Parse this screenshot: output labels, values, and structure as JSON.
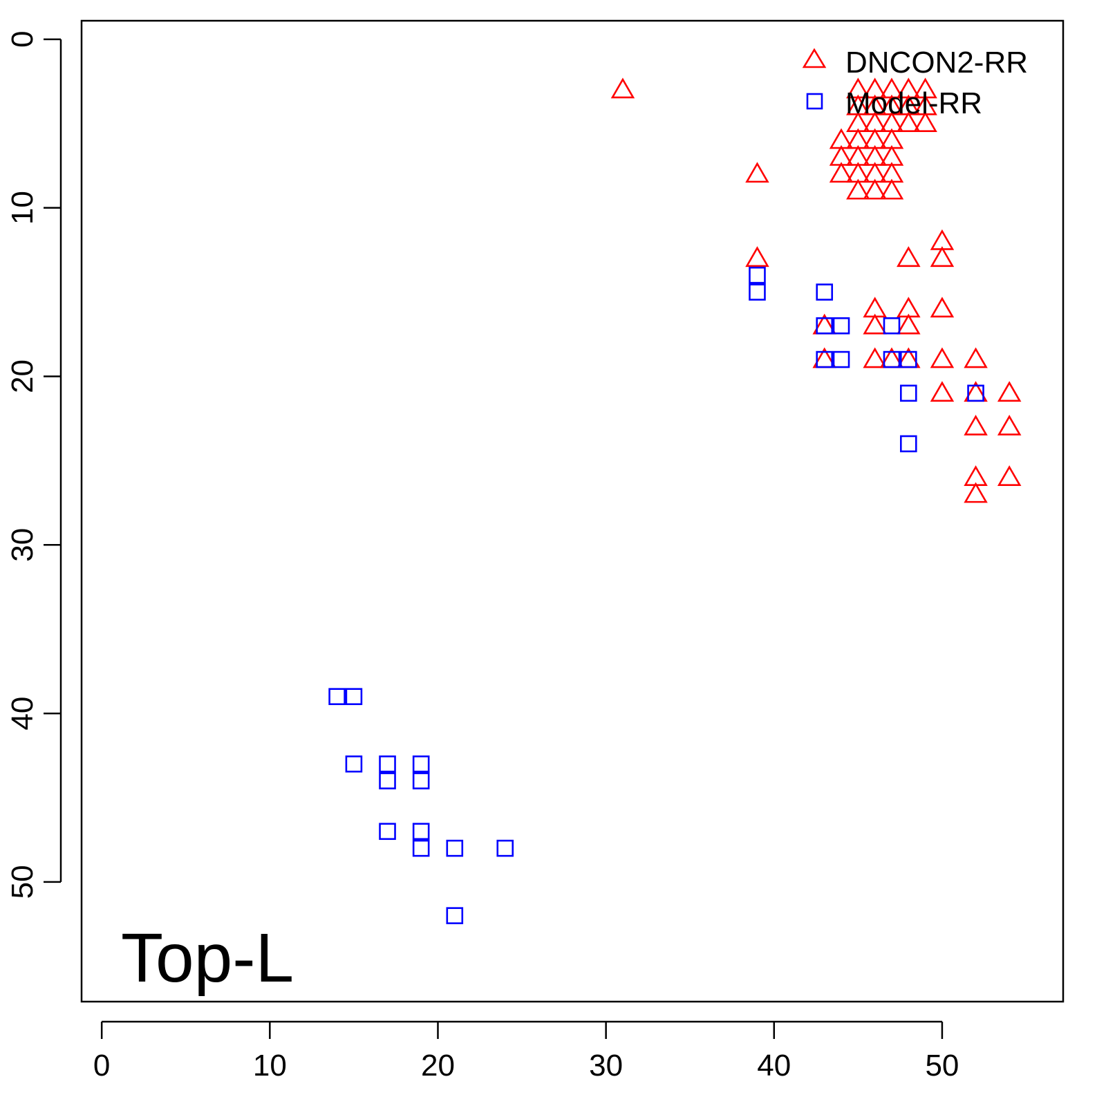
{
  "chart_data": {
    "type": "scatter",
    "title": "",
    "xlabel": "",
    "ylabel": "",
    "annotation": "Top-L",
    "xlim": [
      -1.2,
      57.2
    ],
    "ylim": [
      -1.1,
      57.1
    ],
    "y_inverted": true,
    "grid": false,
    "legend_position": "top-right",
    "x_ticks": [
      "0",
      "10",
      "20",
      "30",
      "40",
      "50"
    ],
    "y_ticks": [
      "0",
      "10",
      "20",
      "30",
      "40",
      "50"
    ],
    "series": [
      {
        "name": "DNCON2-RR",
        "marker": "triangle",
        "color": "#ff0000",
        "points": [
          [
            31,
            3
          ],
          [
            39,
            8
          ],
          [
            45,
            3
          ],
          [
            46,
            3
          ],
          [
            47,
            3
          ],
          [
            48,
            3
          ],
          [
            49,
            3
          ],
          [
            45,
            4
          ],
          [
            46,
            4
          ],
          [
            47,
            4
          ],
          [
            48,
            4
          ],
          [
            49,
            4
          ],
          [
            45,
            5
          ],
          [
            46,
            5
          ],
          [
            47,
            5
          ],
          [
            48,
            5
          ],
          [
            49,
            5
          ],
          [
            44,
            6
          ],
          [
            45,
            6
          ],
          [
            46,
            6
          ],
          [
            47,
            6
          ],
          [
            44,
            7
          ],
          [
            45,
            7
          ],
          [
            46,
            7
          ],
          [
            47,
            7
          ],
          [
            44,
            8
          ],
          [
            45,
            8
          ],
          [
            46,
            8
          ],
          [
            47,
            8
          ],
          [
            45,
            9
          ],
          [
            46,
            9
          ],
          [
            47,
            9
          ],
          [
            50,
            12
          ],
          [
            39,
            13
          ],
          [
            48,
            13
          ],
          [
            50,
            13
          ],
          [
            46,
            16
          ],
          [
            48,
            16
          ],
          [
            50,
            16
          ],
          [
            43,
            17
          ],
          [
            46,
            17
          ],
          [
            48,
            17
          ],
          [
            43,
            19
          ],
          [
            46,
            19
          ],
          [
            47,
            19
          ],
          [
            48,
            19
          ],
          [
            50,
            19
          ],
          [
            52,
            19
          ],
          [
            50,
            21
          ],
          [
            52,
            21
          ],
          [
            54,
            21
          ],
          [
            52,
            23
          ],
          [
            54,
            23
          ],
          [
            52,
            26
          ],
          [
            54,
            26
          ],
          [
            52,
            27
          ]
        ]
      },
      {
        "name": "Model-RR",
        "marker": "square",
        "color": "#0000ff",
        "points": [
          [
            39,
            14
          ],
          [
            39,
            15
          ],
          [
            43,
            15
          ],
          [
            43,
            17
          ],
          [
            44,
            17
          ],
          [
            47,
            17
          ],
          [
            43,
            19
          ],
          [
            44,
            19
          ],
          [
            47,
            19
          ],
          [
            48,
            19
          ],
          [
            48,
            21
          ],
          [
            52,
            21
          ],
          [
            48,
            24
          ],
          [
            14,
            39
          ],
          [
            15,
            39
          ],
          [
            15,
            43
          ],
          [
            17,
            43
          ],
          [
            17,
            44
          ],
          [
            19,
            43
          ],
          [
            19,
            44
          ],
          [
            17,
            47
          ],
          [
            19,
            47
          ],
          [
            19,
            48
          ],
          [
            21,
            48
          ],
          [
            24,
            48
          ],
          [
            21,
            52
          ]
        ]
      }
    ]
  }
}
